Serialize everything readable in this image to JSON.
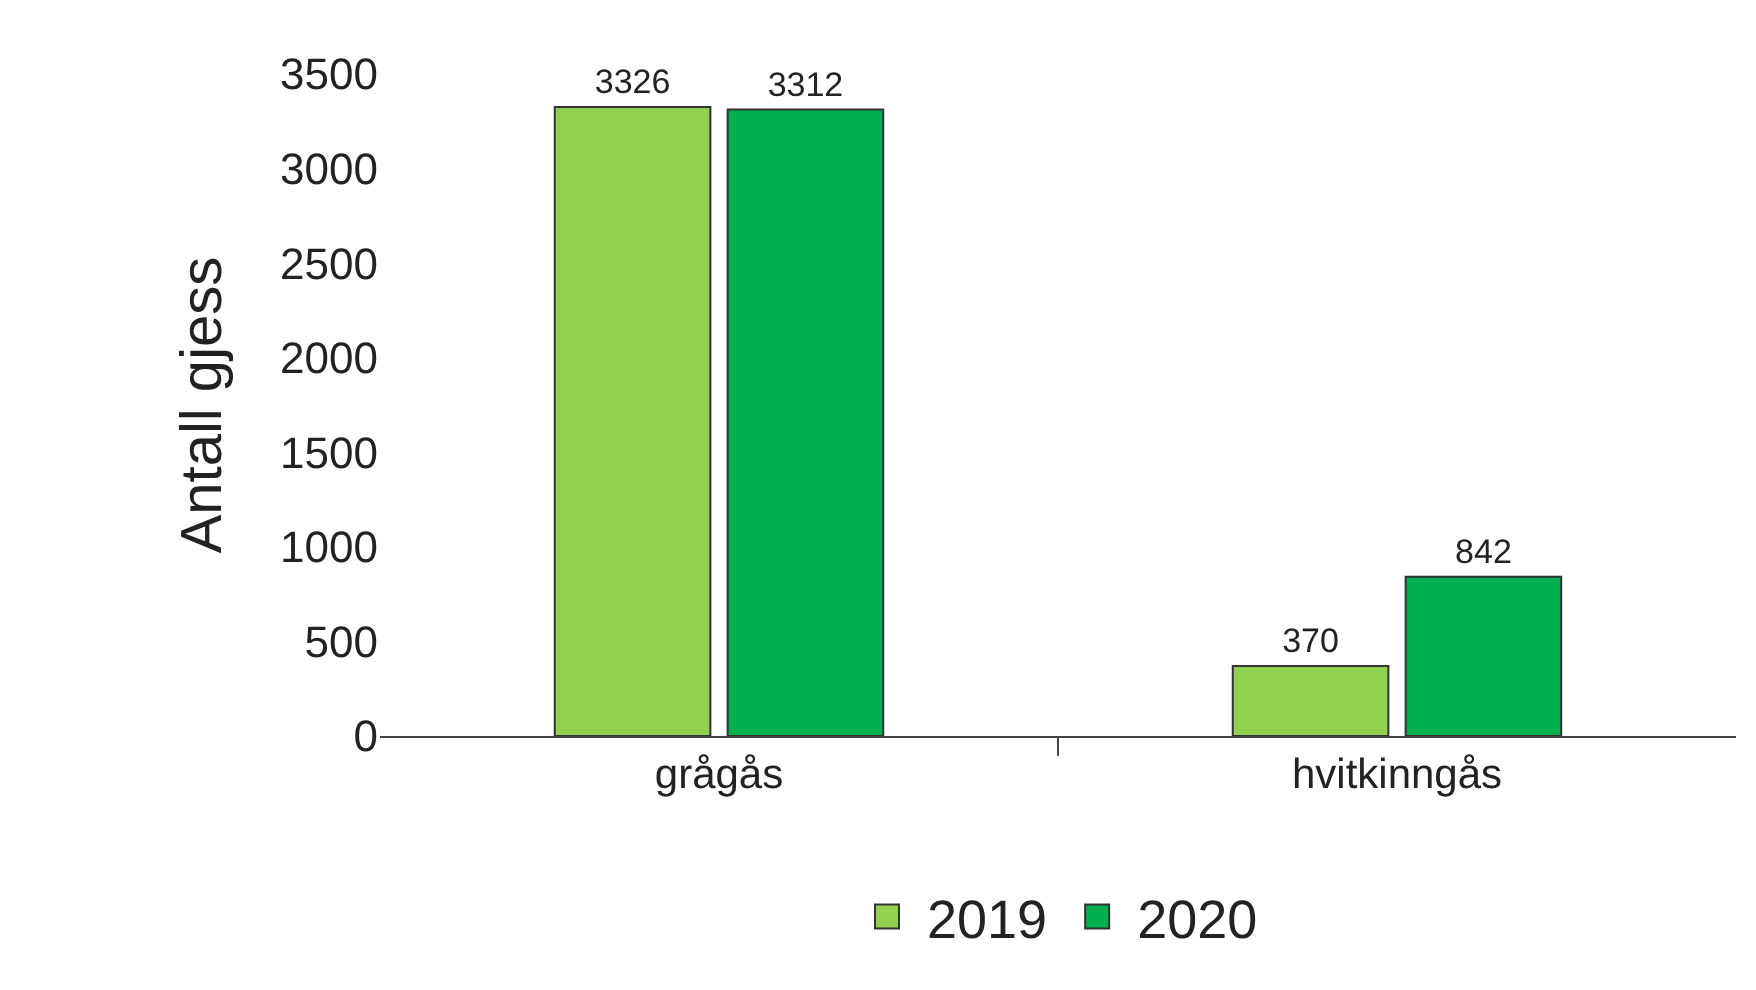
{
  "chart_data": {
    "type": "bar",
    "ylabel": "Antall gjess",
    "categories": [
      "grågås",
      "hvitkinngås"
    ],
    "series": [
      {
        "name": "2019",
        "color": "#92d050",
        "values": [
          3326,
          370
        ]
      },
      {
        "name": "2020",
        "color": "#00b050",
        "values": [
          3312,
          842
        ]
      }
    ],
    "ylim": [
      0,
      3500
    ],
    "yticks": [
      0,
      500,
      1000,
      1500,
      2000,
      2500,
      3000,
      3500
    ],
    "grid": false,
    "legend": "bottom",
    "data_labels": true
  }
}
